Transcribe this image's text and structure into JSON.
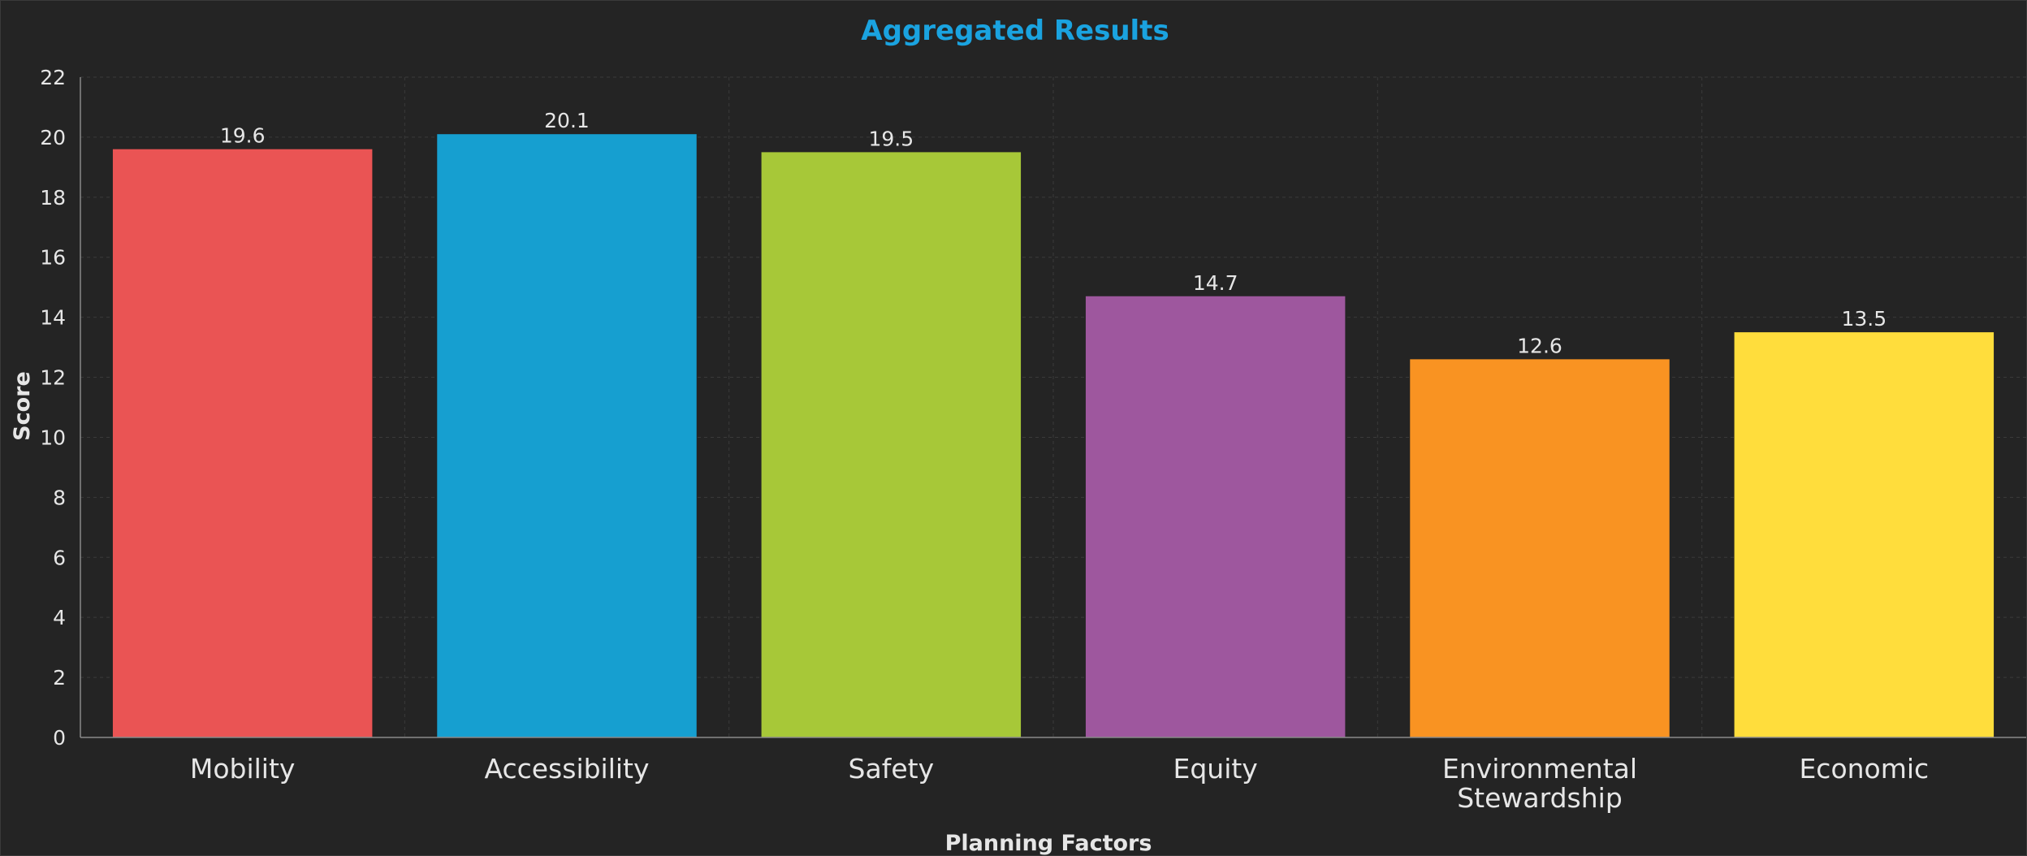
{
  "colors": {
    "background": "#242424",
    "title": "#1aa3e0",
    "text": "#e6e6e6",
    "grid": "#3a3a3a",
    "axis": "#8a8a8a"
  },
  "chart_data": {
    "type": "bar",
    "title": "Aggregated Results",
    "xlabel": "Planning Factors",
    "ylabel": "Score",
    "ylim": [
      0,
      22
    ],
    "yticks": [
      "0",
      "2",
      "4",
      "6",
      "8",
      "10",
      "12",
      "14",
      "16",
      "18",
      "20",
      "22"
    ],
    "grid": true,
    "legend": "none",
    "categories": [
      [
        "Mobility"
      ],
      [
        "Accessibility"
      ],
      [
        "Safety"
      ],
      [
        "Equity"
      ],
      [
        "Environmental",
        "Stewardship"
      ],
      [
        "Economic"
      ]
    ],
    "values": [
      19.6,
      20.1,
      19.5,
      14.7,
      12.6,
      13.5
    ],
    "data_labels": [
      "19.6",
      "20.1",
      "19.5",
      "14.7",
      "12.6",
      "13.5"
    ],
    "bar_colors": [
      "#ea5454",
      "#169fd0",
      "#a7c838",
      "#9e579e",
      "#f99322",
      "#ffdd3c"
    ]
  }
}
